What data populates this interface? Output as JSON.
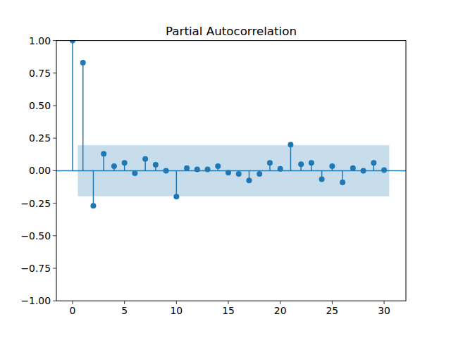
{
  "chart_data": {
    "type": "stem",
    "title": "Partial Autocorrelation",
    "x": [
      0,
      1,
      2,
      3,
      4,
      5,
      6,
      7,
      8,
      9,
      10,
      11,
      12,
      13,
      14,
      15,
      16,
      17,
      18,
      19,
      20,
      21,
      22,
      23,
      24,
      25,
      26,
      27,
      28,
      29,
      30
    ],
    "values": [
      1.0,
      0.83,
      -0.27,
      0.13,
      0.035,
      0.06,
      -0.02,
      0.09,
      0.045,
      0.0,
      -0.2,
      0.02,
      0.01,
      0.01,
      0.035,
      -0.015,
      -0.025,
      -0.075,
      -0.025,
      0.06,
      0.015,
      0.2,
      0.05,
      0.06,
      -0.065,
      0.035,
      -0.09,
      0.02,
      0.0,
      0.06,
      0.005
    ],
    "color": "#1f77b4",
    "marker": "circle",
    "confidence_band": {
      "x": [
        0.5,
        30.5
      ],
      "lower": -0.196,
      "upper": 0.196
    },
    "xlim": [
      -1.56,
      32.1
    ],
    "ylim": [
      -1,
      1
    ],
    "xticks": [
      0,
      5,
      10,
      15,
      20,
      25,
      30
    ],
    "yticks": [
      {
        "value": -1,
        "label": "−1.00"
      },
      {
        "value": -0.75,
        "label": "−0.75"
      },
      {
        "value": -0.5,
        "label": "−0.50"
      },
      {
        "value": -0.25,
        "label": "−0.25"
      },
      {
        "value": 0,
        "label": "0.00"
      },
      {
        "value": 0.25,
        "label": "0.25"
      },
      {
        "value": 0.5,
        "label": "0.50"
      },
      {
        "value": 0.75,
        "label": "0.75"
      },
      {
        "value": 1,
        "label": "1.00"
      }
    ],
    "grid": false
  }
}
